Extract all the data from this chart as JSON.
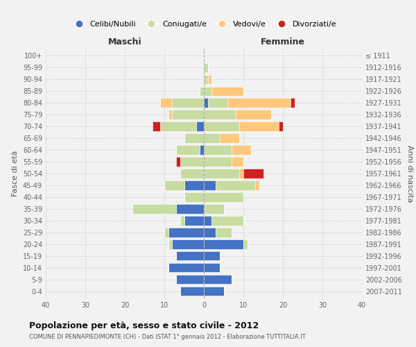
{
  "age_groups": [
    "0-4",
    "5-9",
    "10-14",
    "15-19",
    "20-24",
    "25-29",
    "30-34",
    "35-39",
    "40-44",
    "45-49",
    "50-54",
    "55-59",
    "60-64",
    "65-69",
    "70-74",
    "75-79",
    "80-84",
    "85-89",
    "90-94",
    "95-99",
    "100+"
  ],
  "birth_years": [
    "2007-2011",
    "2002-2006",
    "1997-2001",
    "1992-1996",
    "1987-1991",
    "1982-1986",
    "1977-1981",
    "1972-1976",
    "1967-1971",
    "1962-1966",
    "1957-1961",
    "1952-1956",
    "1947-1951",
    "1942-1946",
    "1937-1941",
    "1932-1936",
    "1927-1931",
    "1922-1926",
    "1917-1921",
    "1912-1916",
    "≤ 1911"
  ],
  "male": {
    "celibi": [
      6,
      7,
      9,
      7,
      8,
      9,
      5,
      7,
      0,
      5,
      0,
      0,
      1,
      0,
      2,
      0,
      0,
      0,
      0,
      0,
      0
    ],
    "coniugati": [
      0,
      0,
      0,
      0,
      1,
      1,
      1,
      11,
      5,
      5,
      6,
      6,
      6,
      5,
      9,
      8,
      8,
      1,
      0,
      0,
      0
    ],
    "vedovi": [
      0,
      0,
      0,
      0,
      0,
      0,
      0,
      0,
      0,
      0,
      0,
      0,
      0,
      0,
      0,
      1,
      3,
      0,
      0,
      0,
      0
    ],
    "divorziati": [
      0,
      0,
      0,
      0,
      0,
      0,
      0,
      0,
      0,
      0,
      0,
      1,
      0,
      0,
      2,
      0,
      0,
      0,
      0,
      0,
      0
    ]
  },
  "female": {
    "nubili": [
      5,
      7,
      4,
      4,
      10,
      3,
      2,
      0,
      0,
      3,
      0,
      0,
      0,
      0,
      0,
      0,
      1,
      0,
      0,
      0,
      0
    ],
    "coniugate": [
      0,
      0,
      0,
      0,
      1,
      4,
      8,
      5,
      10,
      10,
      9,
      7,
      7,
      4,
      9,
      8,
      5,
      2,
      1,
      1,
      0
    ],
    "vedove": [
      0,
      0,
      0,
      0,
      0,
      0,
      0,
      0,
      0,
      1,
      1,
      3,
      5,
      5,
      10,
      9,
      16,
      8,
      1,
      0,
      0
    ],
    "divorziate": [
      0,
      0,
      0,
      0,
      0,
      0,
      0,
      0,
      0,
      0,
      5,
      0,
      0,
      0,
      1,
      0,
      1,
      0,
      0,
      0,
      0
    ]
  },
  "colors": {
    "celibi": "#4472C4",
    "coniugati": "#c8dba0",
    "vedovi": "#ffc87c",
    "divorziati": "#cc2222"
  },
  "title": "Popolazione per età, sesso e stato civile - 2012",
  "subtitle": "COMUNE DI PENNAPIEDIMONTE (CH) - Dati ISTAT 1° gennaio 2012 - Elaborazione TUTTITALIA.IT",
  "xlabel_left": "Maschi",
  "xlabel_right": "Femmine",
  "ylabel": "Fasce di età",
  "ylabel_right": "Anni di nascita",
  "xlim": 40,
  "background_color": "#f2f2f2",
  "legend_labels": [
    "Celibi/Nubili",
    "Coniugati/e",
    "Vedovi/e",
    "Divorziati/e"
  ]
}
